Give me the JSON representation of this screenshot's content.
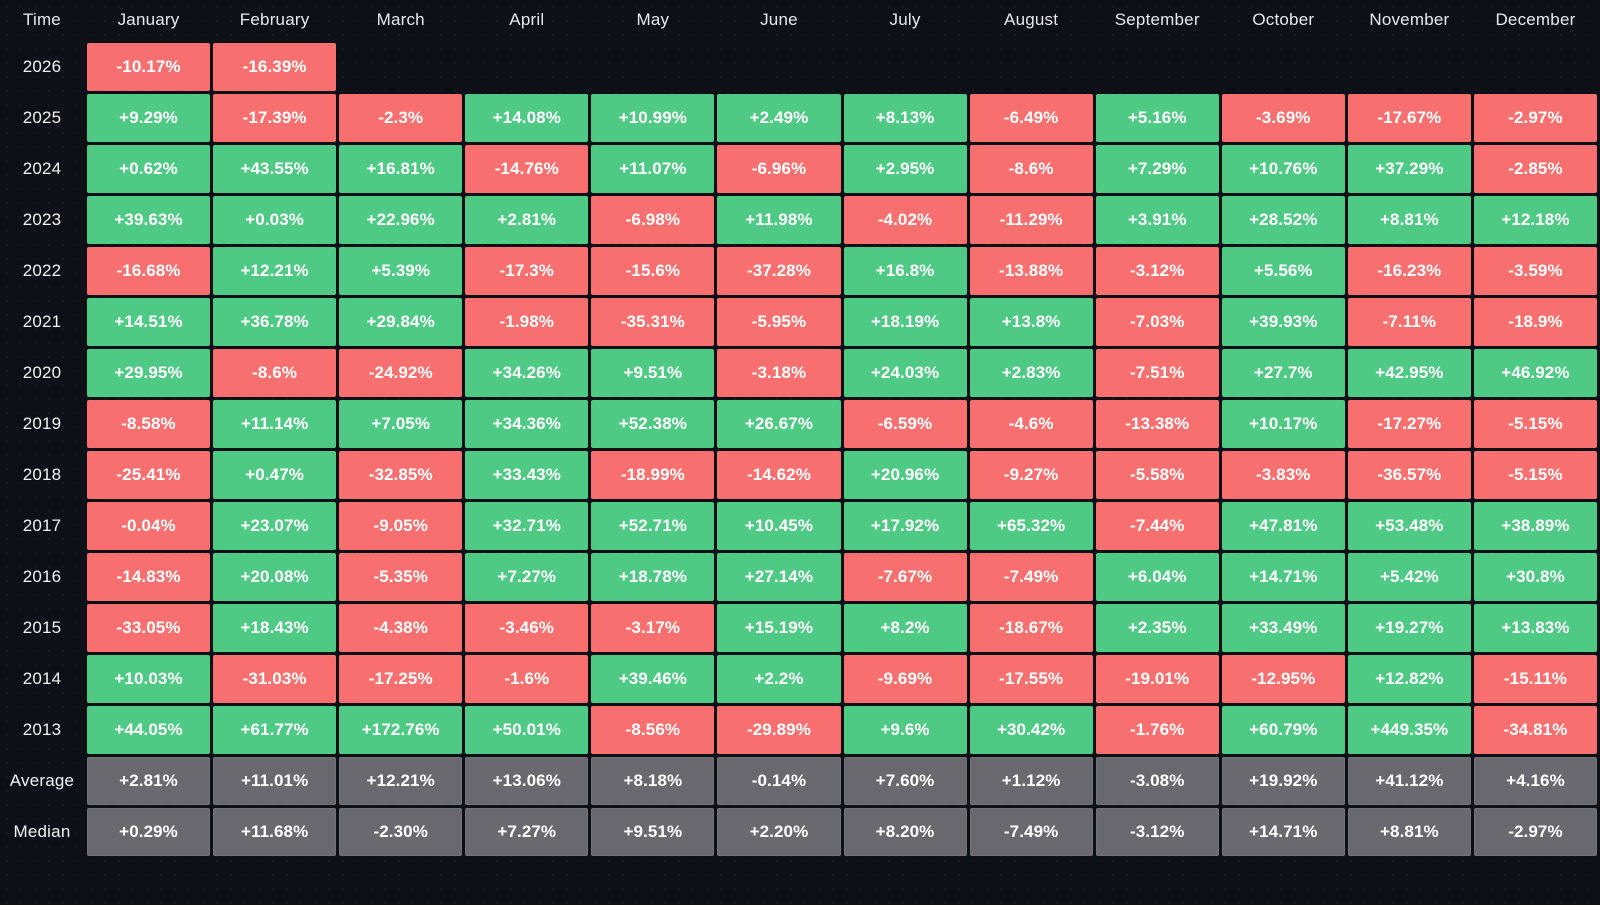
{
  "chart_data": {
    "type": "heatmap",
    "corner_label": "Time",
    "columns": [
      "January",
      "February",
      "March",
      "April",
      "May",
      "June",
      "July",
      "August",
      "September",
      "October",
      "November",
      "December"
    ],
    "rows": [
      {
        "label": "2026",
        "type": "year",
        "values": [
          "-10.17%",
          "-16.39%",
          null,
          null,
          null,
          null,
          null,
          null,
          null,
          null,
          null,
          null
        ]
      },
      {
        "label": "2025",
        "type": "year",
        "values": [
          "+9.29%",
          "-17.39%",
          "-2.3%",
          "+14.08%",
          "+10.99%",
          "+2.49%",
          "+8.13%",
          "-6.49%",
          "+5.16%",
          "-3.69%",
          "-17.67%",
          "-2.97%"
        ]
      },
      {
        "label": "2024",
        "type": "year",
        "values": [
          "+0.62%",
          "+43.55%",
          "+16.81%",
          "-14.76%",
          "+11.07%",
          "-6.96%",
          "+2.95%",
          "-8.6%",
          "+7.29%",
          "+10.76%",
          "+37.29%",
          "-2.85%"
        ]
      },
      {
        "label": "2023",
        "type": "year",
        "values": [
          "+39.63%",
          "+0.03%",
          "+22.96%",
          "+2.81%",
          "-6.98%",
          "+11.98%",
          "-4.02%",
          "-11.29%",
          "+3.91%",
          "+28.52%",
          "+8.81%",
          "+12.18%"
        ]
      },
      {
        "label": "2022",
        "type": "year",
        "values": [
          "-16.68%",
          "+12.21%",
          "+5.39%",
          "-17.3%",
          "-15.6%",
          "-37.28%",
          "+16.8%",
          "-13.88%",
          "-3.12%",
          "+5.56%",
          "-16.23%",
          "-3.59%"
        ]
      },
      {
        "label": "2021",
        "type": "year",
        "values": [
          "+14.51%",
          "+36.78%",
          "+29.84%",
          "-1.98%",
          "-35.31%",
          "-5.95%",
          "+18.19%",
          "+13.8%",
          "-7.03%",
          "+39.93%",
          "-7.11%",
          "-18.9%"
        ]
      },
      {
        "label": "2020",
        "type": "year",
        "values": [
          "+29.95%",
          "-8.6%",
          "-24.92%",
          "+34.26%",
          "+9.51%",
          "-3.18%",
          "+24.03%",
          "+2.83%",
          "-7.51%",
          "+27.7%",
          "+42.95%",
          "+46.92%"
        ]
      },
      {
        "label": "2019",
        "type": "year",
        "values": [
          "-8.58%",
          "+11.14%",
          "+7.05%",
          "+34.36%",
          "+52.38%",
          "+26.67%",
          "-6.59%",
          "-4.6%",
          "-13.38%",
          "+10.17%",
          "-17.27%",
          "-5.15%"
        ]
      },
      {
        "label": "2018",
        "type": "year",
        "values": [
          "-25.41%",
          "+0.47%",
          "-32.85%",
          "+33.43%",
          "-18.99%",
          "-14.62%",
          "+20.96%",
          "-9.27%",
          "-5.58%",
          "-3.83%",
          "-36.57%",
          "-5.15%"
        ]
      },
      {
        "label": "2017",
        "type": "year",
        "values": [
          "-0.04%",
          "+23.07%",
          "-9.05%",
          "+32.71%",
          "+52.71%",
          "+10.45%",
          "+17.92%",
          "+65.32%",
          "-7.44%",
          "+47.81%",
          "+53.48%",
          "+38.89%"
        ]
      },
      {
        "label": "2016",
        "type": "year",
        "values": [
          "-14.83%",
          "+20.08%",
          "-5.35%",
          "+7.27%",
          "+18.78%",
          "+27.14%",
          "-7.67%",
          "-7.49%",
          "+6.04%",
          "+14.71%",
          "+5.42%",
          "+30.8%"
        ]
      },
      {
        "label": "2015",
        "type": "year",
        "values": [
          "-33.05%",
          "+18.43%",
          "-4.38%",
          "-3.46%",
          "-3.17%",
          "+15.19%",
          "+8.2%",
          "-18.67%",
          "+2.35%",
          "+33.49%",
          "+19.27%",
          "+13.83%"
        ]
      },
      {
        "label": "2014",
        "type": "year",
        "values": [
          "+10.03%",
          "-31.03%",
          "-17.25%",
          "-1.6%",
          "+39.46%",
          "+2.2%",
          "-9.69%",
          "-17.55%",
          "-19.01%",
          "-12.95%",
          "+12.82%",
          "-15.11%"
        ]
      },
      {
        "label": "2013",
        "type": "year",
        "values": [
          "+44.05%",
          "+61.77%",
          "+172.76%",
          "+50.01%",
          "-8.56%",
          "-29.89%",
          "+9.6%",
          "+30.42%",
          "-1.76%",
          "+60.79%",
          "+449.35%",
          "-34.81%"
        ]
      },
      {
        "label": "Average",
        "type": "summary",
        "values": [
          "+2.81%",
          "+11.01%",
          "+12.21%",
          "+13.06%",
          "+8.18%",
          "-0.14%",
          "+7.60%",
          "+1.12%",
          "-3.08%",
          "+19.92%",
          "+41.12%",
          "+4.16%"
        ]
      },
      {
        "label": "Median",
        "type": "summary",
        "values": [
          "+0.29%",
          "+11.68%",
          "-2.30%",
          "+7.27%",
          "+9.51%",
          "+2.20%",
          "+8.20%",
          "-7.49%",
          "-3.12%",
          "+14.71%",
          "+8.81%",
          "-2.97%"
        ]
      }
    ],
    "colors": {
      "positive": "#4fca85",
      "negative": "#f7706f",
      "summary": "#6a6a6e",
      "background": "#0d1117",
      "text": "#ffffff"
    }
  }
}
